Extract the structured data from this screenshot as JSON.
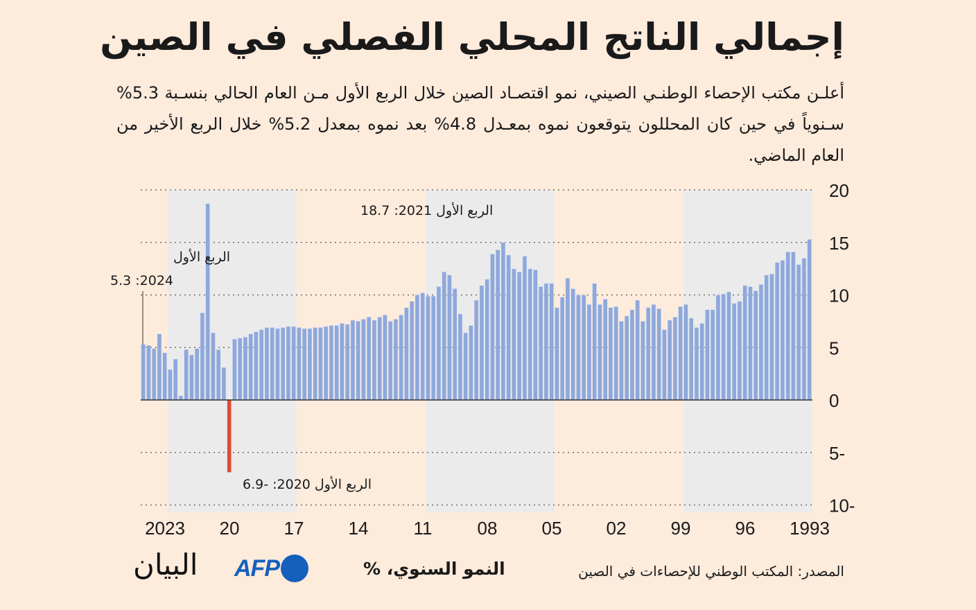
{
  "title": "إجمالي الناتج المحلي الفصلي في الصين",
  "subtitle": "أعلـن مكتب الإحصاء الوطنـي الصيني، نمو اقتصـاد الصين خلال الربع الأول مـن العام الحالي بنسـبة 5.3% سـنوياً في حين كان المحللون يتوقعون نموه بمعـدل 4.8% بعد نموه بمعدل 5.2% خلال الربع الأخير من العام الماضي.",
  "footer": {
    "source": "المصدر: المكتب الوطني للإحصاءات في الصين",
    "unit_label": "النمو السنوي، %",
    "afp_logo": "AFP",
    "bayan_logo": "البيان"
  },
  "colors": {
    "background": "#fdebdc",
    "band": "#ebebeb",
    "bar": "#8fa8da",
    "negative_bar": "#e24a33",
    "afp": "#1560bd"
  },
  "chart_data": {
    "type": "bar",
    "order": "newest (2024 Q1) on left to oldest (1993 Q1) on right",
    "ylabel": "النمو السنوي، %",
    "ylim": [
      -10,
      20
    ],
    "yticks": [
      20,
      15,
      10,
      5,
      0,
      -5,
      -10
    ],
    "ytick_labels": [
      "20",
      "15",
      "10",
      "5",
      "0",
      "5-",
      "10-"
    ],
    "xtick_labels": [
      "2023",
      "20",
      "17",
      "14",
      "11",
      "08",
      "05",
      "02",
      "99",
      "96",
      "1993"
    ],
    "grid": true,
    "values": [
      5.3,
      5.2,
      4.9,
      6.3,
      4.5,
      2.9,
      3.9,
      0.4,
      4.8,
      4.3,
      4.9,
      8.3,
      18.7,
      6.4,
      4.8,
      3.1,
      -6.9,
      5.8,
      5.9,
      6.0,
      6.3,
      6.5,
      6.7,
      6.9,
      6.9,
      6.8,
      6.9,
      7.0,
      7.0,
      6.9,
      6.8,
      6.8,
      6.9,
      6.9,
      7.0,
      7.1,
      7.1,
      7.3,
      7.2,
      7.6,
      7.5,
      7.7,
      7.9,
      7.6,
      7.9,
      8.1,
      7.5,
      7.7,
      8.1,
      8.8,
      9.4,
      10.0,
      10.2,
      9.9,
      9.9,
      10.8,
      12.2,
      11.9,
      10.6,
      8.2,
      6.4,
      7.1,
      9.5,
      10.9,
      11.5,
      13.9,
      14.3,
      15.0,
      13.8,
      12.5,
      12.2,
      13.7,
      12.5,
      12.4,
      10.8,
      11.1,
      11.1,
      8.8,
      9.8,
      11.6,
      10.6,
      10.0,
      10.0,
      9.1,
      11.1,
      9.1,
      9.6,
      8.8,
      8.9,
      7.5,
      8.0,
      8.6,
      9.5,
      7.5,
      8.8,
      9.1,
      8.7,
      6.7,
      7.6,
      7.9,
      8.9,
      9.1,
      7.8,
      6.9,
      7.3,
      8.6,
      8.6,
      10.0,
      10.1,
      10.3,
      9.2,
      9.4,
      10.9,
      10.8,
      10.4,
      11.0,
      11.9,
      12.0,
      13.1,
      13.3,
      14.1,
      14.1,
      12.9,
      13.5,
      15.3
    ],
    "annotations": {
      "latest_line1": "الربع الأول",
      "latest_line2": "2024: 5.3",
      "peak": "الربع الأول 2021: 18.7",
      "trough": "الربع الأول 2020: -6.9"
    }
  }
}
